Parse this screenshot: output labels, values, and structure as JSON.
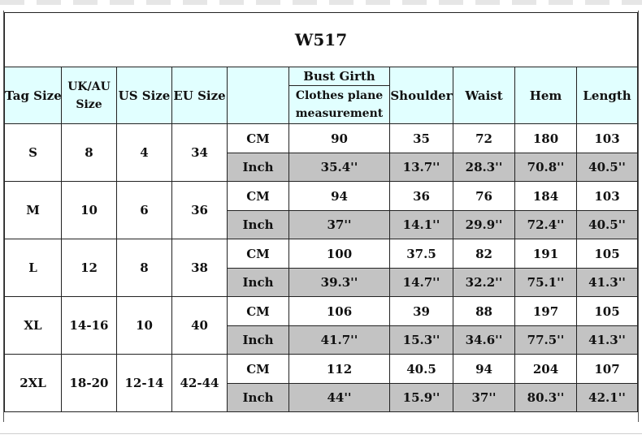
{
  "title": "W517",
  "headers": {
    "tag_size": "Tag Size",
    "uk_au_line1": "UK/AU",
    "uk_au_line2": "Size",
    "us_size": "US Size",
    "eu_size": "EU Size",
    "bust_girth": "Bust Girth",
    "bust_sub_line1": "Clothes plane",
    "bust_sub_line2": "measurement",
    "shoulder": "Shoulder",
    "waist": "Waist",
    "hem": "Hem",
    "length": "Length"
  },
  "rows": [
    {
      "tag": "S",
      "uk_au": "8",
      "us": "4",
      "eu": "34",
      "cm": {
        "unit": "CM",
        "bust": "90",
        "shoulder": "35",
        "waist": "72",
        "hem": "180",
        "length": "103"
      },
      "inch": {
        "unit": "Inch",
        "bust": "35.4''",
        "shoulder": "13.7''",
        "waist": "28.3''",
        "hem": "70.8''",
        "length": "40.5''"
      }
    },
    {
      "tag": "M",
      "uk_au": "10",
      "us": "6",
      "eu": "36",
      "cm": {
        "unit": "CM",
        "bust": "94",
        "shoulder": "36",
        "waist": "76",
        "hem": "184",
        "length": "103"
      },
      "inch": {
        "unit": "Inch",
        "bust": "37''",
        "shoulder": "14.1''",
        "waist": "29.9''",
        "hem": "72.4''",
        "length": "40.5''"
      }
    },
    {
      "tag": "L",
      "uk_au": "12",
      "us": "8",
      "eu": "38",
      "cm": {
        "unit": "CM",
        "bust": "100",
        "shoulder": "37.5",
        "waist": "82",
        "hem": "191",
        "length": "105"
      },
      "inch": {
        "unit": "Inch",
        "bust": "39.3''",
        "shoulder": "14.7''",
        "waist": "32.2''",
        "hem": "75.1''",
        "length": "41.3''"
      }
    },
    {
      "tag": "XL",
      "uk_au": "14-16",
      "us": "10",
      "eu": "40",
      "cm": {
        "unit": "CM",
        "bust": "106",
        "shoulder": "39",
        "waist": "88",
        "hem": "197",
        "length": "105"
      },
      "inch": {
        "unit": "Inch",
        "bust": "41.7''",
        "shoulder": "15.3''",
        "waist": "34.6''",
        "hem": "77.5''",
        "length": "41.3''"
      }
    },
    {
      "tag": "2XL",
      "uk_au": "18-20",
      "us": "12-14",
      "eu": "42-44",
      "cm": {
        "unit": "CM",
        "bust": "112",
        "shoulder": "40.5",
        "waist": "94",
        "hem": "204",
        "length": "107"
      },
      "inch": {
        "unit": "Inch",
        "bust": "44''",
        "shoulder": "15.9''",
        "waist": "37''",
        "hem": "80.3''",
        "length": "42.1''"
      }
    }
  ],
  "colors": {
    "header_bg": "#e1ffff",
    "inch_row_bg": "#c3c3c3",
    "border": "#222222"
  }
}
